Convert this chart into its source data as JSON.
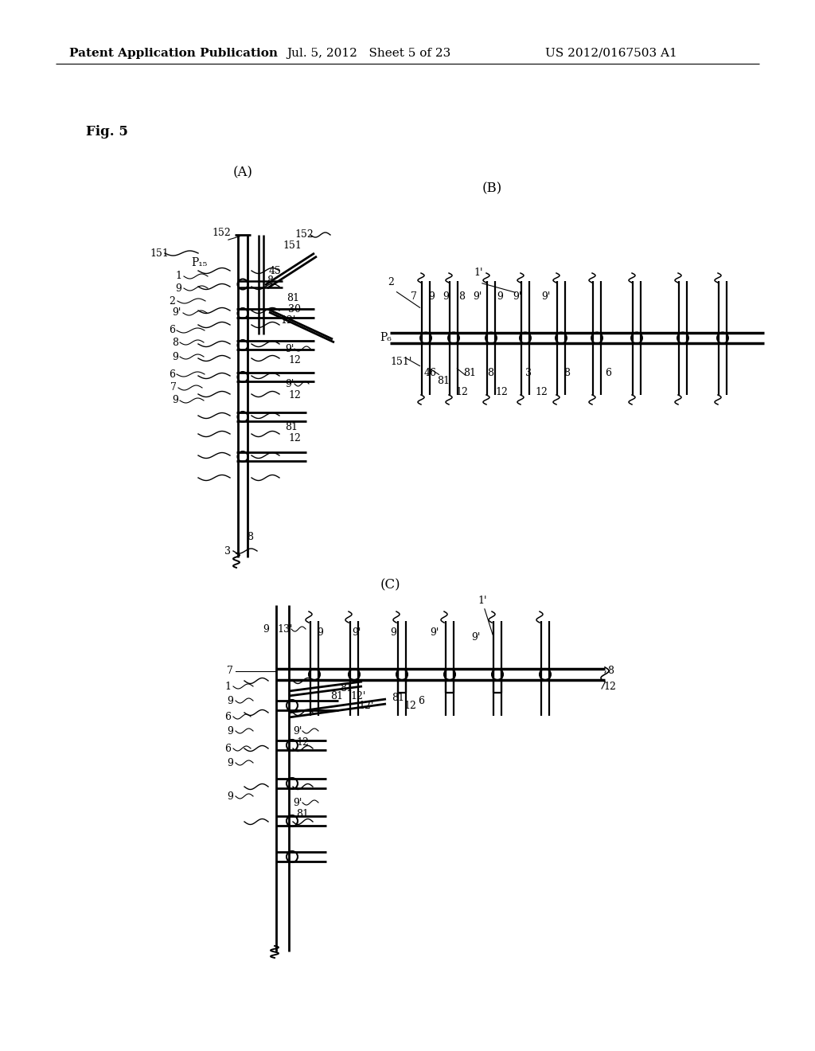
{
  "header_left": "Patent Application Publication",
  "header_mid": "Jul. 5, 2012   Sheet 5 of 23",
  "header_right": "US 2012/0167503 A1",
  "fig_label": "Fig. 5",
  "background": "#ffffff"
}
